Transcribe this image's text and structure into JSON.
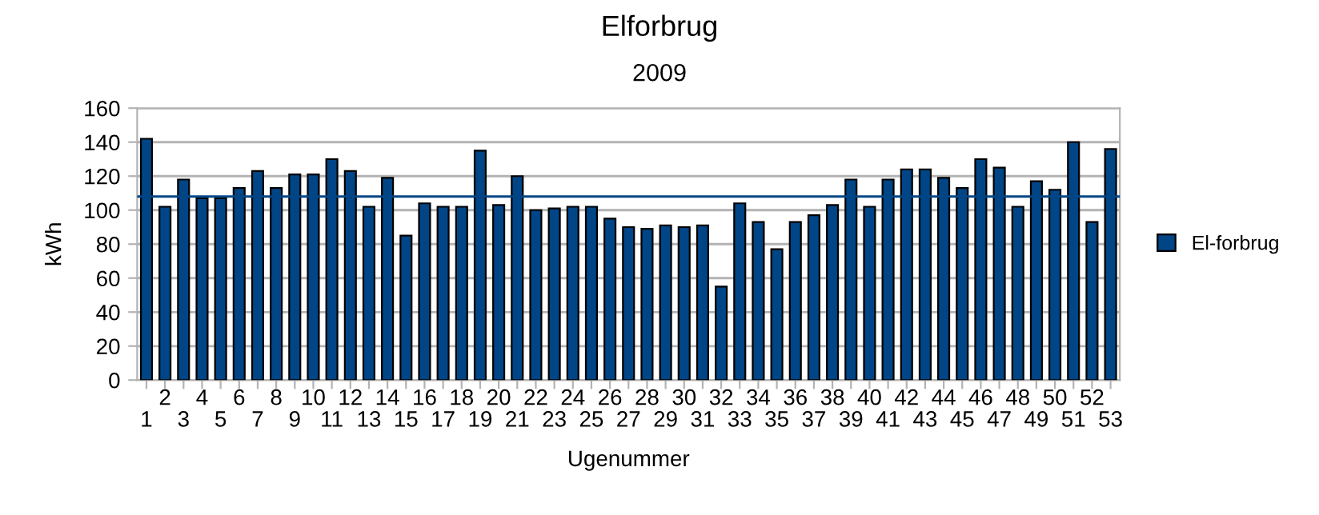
{
  "chart_data": {
    "type": "bar",
    "title": "Elforbrug",
    "subtitle": "2009",
    "xlabel": "Ugenummer",
    "ylabel": "kWh",
    "categories": [
      "1",
      "2",
      "3",
      "4",
      "5",
      "6",
      "7",
      "8",
      "9",
      "10",
      "11",
      "12",
      "13",
      "14",
      "15",
      "16",
      "17",
      "18",
      "19",
      "20",
      "21",
      "22",
      "23",
      "24",
      "25",
      "26",
      "27",
      "28",
      "29",
      "30",
      "31",
      "32",
      "33",
      "34",
      "35",
      "36",
      "37",
      "38",
      "39",
      "40",
      "41",
      "42",
      "43",
      "44",
      "45",
      "46",
      "47",
      "48",
      "49",
      "50",
      "51",
      "52",
      "53"
    ],
    "series": [
      {
        "name": "El-forbrug",
        "color": "#004586",
        "values": [
          142,
          102,
          118,
          107,
          107,
          113,
          123,
          113,
          121,
          121,
          130,
          123,
          102,
          119,
          85,
          104,
          102,
          102,
          135,
          103,
          120,
          100,
          101,
          102,
          102,
          95,
          90,
          89,
          91,
          90,
          91,
          55,
          104,
          93,
          77,
          93,
          97,
          103,
          118,
          102,
          118,
          124,
          124,
          119,
          113,
          130,
          125,
          102,
          117,
          112,
          140,
          93,
          136
        ]
      }
    ],
    "ylim": [
      0,
      160
    ],
    "yticks": [
      0,
      20,
      40,
      60,
      80,
      100,
      120,
      140,
      160
    ],
    "grid": "y",
    "legend": "right",
    "ref_lines": [
      {
        "axis": "y",
        "value": 108,
        "color": "#004586"
      }
    ]
  }
}
